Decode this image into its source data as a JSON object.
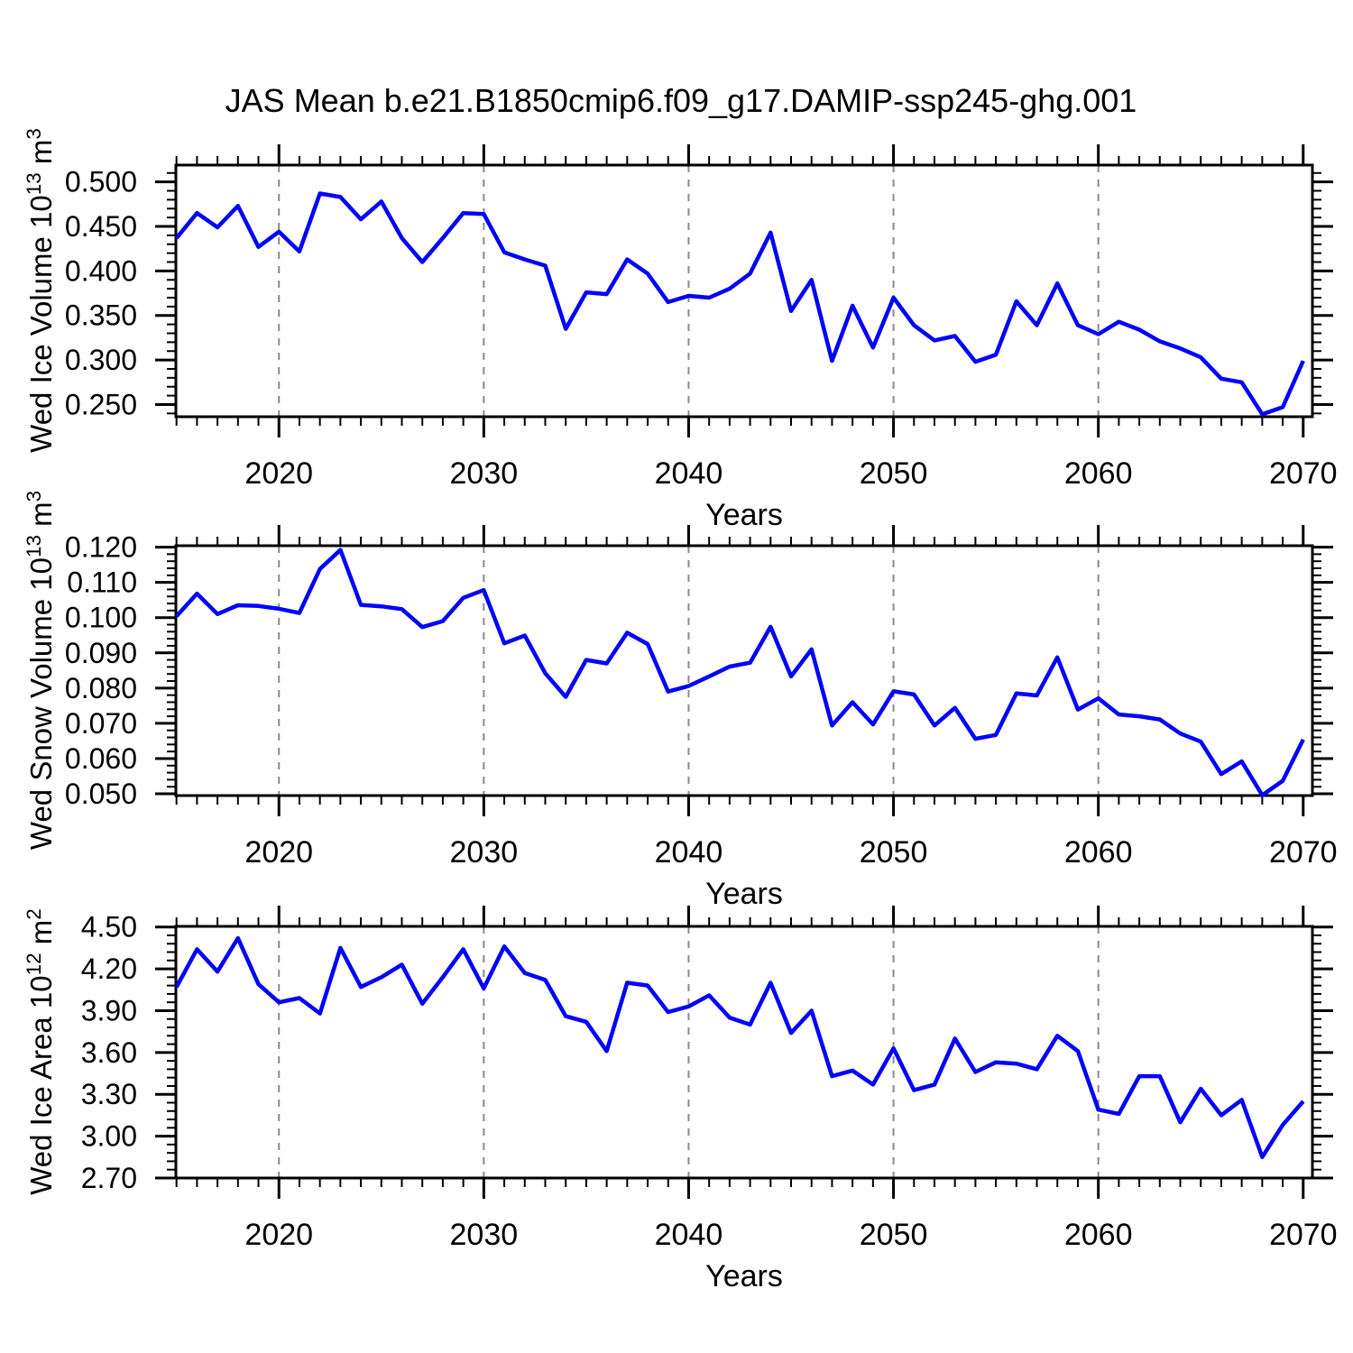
{
  "chart_data": {
    "type": "line",
    "title": "JAS Mean b.e21.B1850cmip6.f09_g17.DAMIP-ssp245-ghg.001",
    "xlabel": "Years",
    "x": [
      2015,
      2016,
      2017,
      2018,
      2019,
      2020,
      2021,
      2022,
      2023,
      2024,
      2025,
      2026,
      2027,
      2028,
      2029,
      2030,
      2031,
      2032,
      2033,
      2034,
      2035,
      2036,
      2037,
      2038,
      2039,
      2040,
      2041,
      2042,
      2043,
      2044,
      2045,
      2046,
      2047,
      2048,
      2049,
      2050,
      2051,
      2052,
      2053,
      2054,
      2055,
      2056,
      2057,
      2058,
      2059,
      2060,
      2061,
      2062,
      2063,
      2064,
      2065,
      2066,
      2067,
      2068,
      2069,
      2070
    ],
    "xlim": [
      2014.97,
      2070.45
    ],
    "xtick_values": [
      2020,
      2030,
      2040,
      2050,
      2060,
      2070
    ],
    "xtick_labels": [
      "2020",
      "2030",
      "2040",
      "2050",
      "2060",
      "2070"
    ],
    "x_minor_step": 1,
    "x_gridlines": [
      2020,
      2030,
      2040,
      2050,
      2060
    ],
    "grid_style": "dashed-vertical-only",
    "line_color": "#0000ff",
    "gridline_color": "#8a8a8a",
    "axis_color": "#000000",
    "legend": "none",
    "panels": [
      {
        "id": "wed-ice-volume",
        "name": "Wed Ice Volume 10^13 m^3",
        "ylabel_parts": {
          "base": "Wed Ice Volume 10",
          "exp": "13",
          "unit": " m",
          "unit_exp": "3"
        },
        "ylim": [
          0.2363,
          0.5189
        ],
        "ytick_values": [
          0.5,
          0.45,
          0.4,
          0.35,
          0.3,
          0.25
        ],
        "ytick_labels": [
          "0.500",
          "0.450",
          "0.400",
          "0.350",
          "0.300",
          "0.250"
        ],
        "y_minor_step": 0.01,
        "values": [
          0.437,
          0.465,
          0.449,
          0.473,
          0.427,
          0.444,
          0.422,
          0.487,
          0.483,
          0.458,
          0.478,
          0.437,
          0.41,
          0.437,
          0.465,
          0.464,
          0.421,
          0.413,
          0.406,
          0.335,
          0.376,
          0.374,
          0.413,
          0.397,
          0.365,
          0.372,
          0.37,
          0.38,
          0.397,
          0.443,
          0.355,
          0.39,
          0.299,
          0.361,
          0.314,
          0.37,
          0.339,
          0.322,
          0.327,
          0.298,
          0.306,
          0.366,
          0.339,
          0.386,
          0.339,
          0.329,
          0.343,
          0.334,
          0.321,
          0.313,
          0.303,
          0.279,
          0.275,
          0.239,
          0.247,
          0.299
        ]
      },
      {
        "id": "wed-snow-volume",
        "name": "Wed Snow Volume 10^13 m^3",
        "ylabel_parts": {
          "base": "Wed Snow Volume 10",
          "exp": "13",
          "unit": " m",
          "unit_exp": "3"
        },
        "ylim": [
          0.0495,
          0.1204
        ],
        "ytick_values": [
          0.12,
          0.11,
          0.1,
          0.09,
          0.08,
          0.07,
          0.06,
          0.05
        ],
        "ytick_labels": [
          "0.120",
          "0.110",
          "0.100",
          "0.090",
          "0.080",
          "0.070",
          "0.060",
          "0.050"
        ],
        "y_minor_step": 0.002,
        "values": [
          0.1004,
          0.1068,
          0.101,
          0.1035,
          0.1033,
          0.1025,
          0.1013,
          0.1138,
          0.1192,
          0.1036,
          0.1032,
          0.1024,
          0.0973,
          0.099,
          0.1056,
          0.1078,
          0.0927,
          0.0949,
          0.0842,
          0.0775,
          0.088,
          0.087,
          0.0957,
          0.0925,
          0.079,
          0.0806,
          0.0833,
          0.0861,
          0.0872,
          0.0974,
          0.0833,
          0.091,
          0.0694,
          0.076,
          0.0697,
          0.0791,
          0.0782,
          0.0694,
          0.0744,
          0.0656,
          0.0667,
          0.0785,
          0.0779,
          0.0887,
          0.0739,
          0.0771,
          0.0725,
          0.072,
          0.0711,
          0.0671,
          0.0648,
          0.0556,
          0.0592,
          0.0496,
          0.0537,
          0.0654
        ]
      },
      {
        "id": "wed-ice-area",
        "name": "Wed Ice Area 10^12 m^2",
        "ylabel_parts": {
          "base": "Wed Ice Area 10",
          "exp": "12",
          "unit": " m",
          "unit_exp": "2"
        },
        "ylim": [
          2.7,
          4.5045
        ],
        "ytick_values": [
          4.5,
          4.2,
          3.9,
          3.6,
          3.3,
          3.0,
          2.7
        ],
        "ytick_labels": [
          "4.50",
          "4.20",
          "3.90",
          "3.60",
          "3.30",
          "3.00",
          "2.70"
        ],
        "y_minor_step": 0.06,
        "values": [
          4.07,
          4.34,
          4.18,
          4.42,
          4.09,
          3.96,
          3.99,
          3.88,
          4.35,
          4.07,
          4.14,
          4.23,
          3.95,
          4.14,
          4.34,
          4.06,
          4.36,
          4.17,
          4.12,
          3.86,
          3.82,
          3.61,
          4.1,
          4.08,
          3.89,
          3.93,
          4.01,
          3.85,
          3.8,
          4.1,
          3.74,
          3.9,
          3.43,
          3.47,
          3.37,
          3.63,
          3.33,
          3.37,
          3.7,
          3.46,
          3.53,
          3.52,
          3.48,
          3.72,
          3.61,
          3.19,
          3.16,
          3.43,
          3.43,
          3.1,
          3.34,
          3.15,
          3.26,
          2.85,
          3.08,
          3.25
        ]
      }
    ]
  }
}
